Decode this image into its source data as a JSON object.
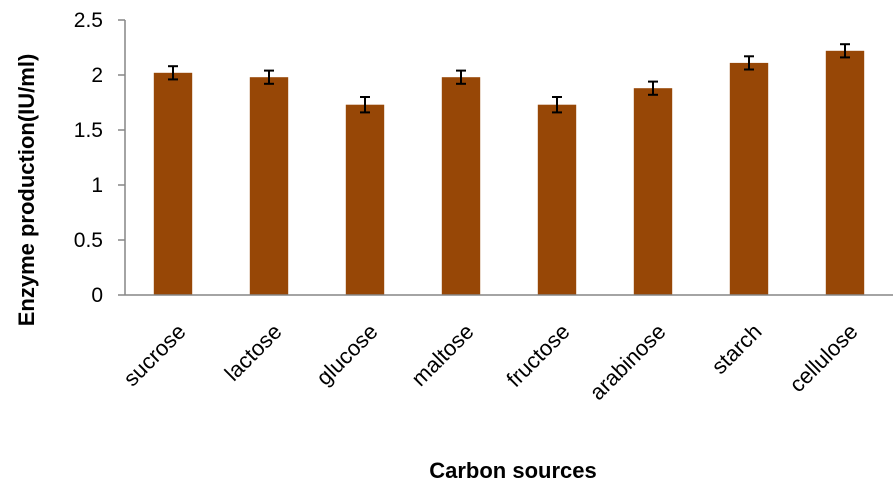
{
  "chart_data": {
    "type": "bar",
    "title": "",
    "xlabel": "Carbon sources",
    "ylabel": "Enzyme production(IU/ml)",
    "categories": [
      "sucrose",
      "lactose",
      "glucose",
      "maltose",
      "fructose",
      "arabinose",
      "starch",
      "cellulose"
    ],
    "series": [
      {
        "values": [
          2.02,
          1.98,
          1.73,
          1.98,
          1.73,
          1.88,
          2.11,
          2.22
        ],
        "errors": [
          0.06,
          0.06,
          0.07,
          0.06,
          0.07,
          0.06,
          0.06,
          0.06
        ]
      }
    ],
    "ylim": [
      0,
      2.5
    ],
    "yticks": [
      0,
      0.5,
      1,
      1.5,
      2,
      2.5
    ],
    "ytick_labels": [
      "0",
      "0.5",
      "1",
      "1.5",
      "2",
      "2.5"
    ],
    "grid": false,
    "legend": "none",
    "bar_color": "#974706",
    "error_bar_color": "#000000"
  }
}
